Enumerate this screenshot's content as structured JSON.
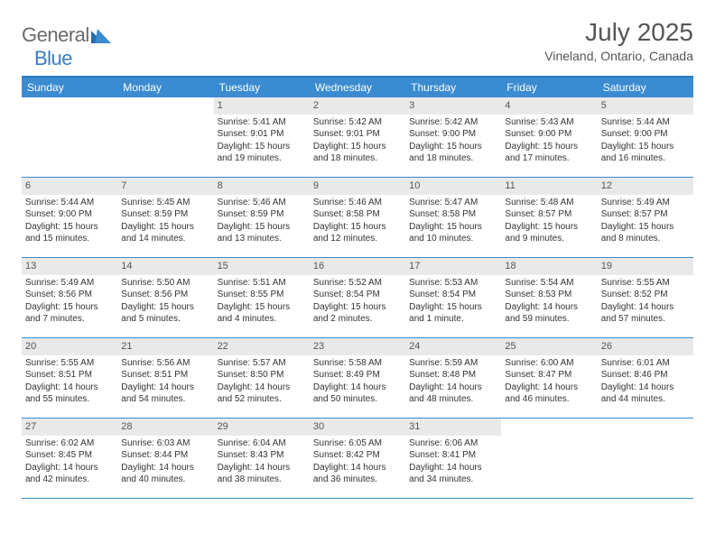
{
  "logo": {
    "text1": "General",
    "text2": "Blue"
  },
  "title": "July 2025",
  "location": "Vineland, Ontario, Canada",
  "colors": {
    "header_bg": "#3a8bd0",
    "header_border": "#2b7bbf",
    "day_band_bg": "#e9e9e9",
    "text": "#333333",
    "title_text": "#555555",
    "logo_gray": "#6a6a6a",
    "logo_blue": "#3a7cc2",
    "background": "#ffffff"
  },
  "fonts": {
    "title_size_pt": 21,
    "location_size_pt": 11,
    "header_size_pt": 9,
    "body_size_pt": 7.5
  },
  "weekdays": [
    "Sunday",
    "Monday",
    "Tuesday",
    "Wednesday",
    "Thursday",
    "Friday",
    "Saturday"
  ],
  "weeks": [
    [
      null,
      null,
      {
        "n": "1",
        "sr": "Sunrise: 5:41 AM",
        "ss": "Sunset: 9:01 PM",
        "d1": "Daylight: 15 hours",
        "d2": "and 19 minutes."
      },
      {
        "n": "2",
        "sr": "Sunrise: 5:42 AM",
        "ss": "Sunset: 9:01 PM",
        "d1": "Daylight: 15 hours",
        "d2": "and 18 minutes."
      },
      {
        "n": "3",
        "sr": "Sunrise: 5:42 AM",
        "ss": "Sunset: 9:00 PM",
        "d1": "Daylight: 15 hours",
        "d2": "and 18 minutes."
      },
      {
        "n": "4",
        "sr": "Sunrise: 5:43 AM",
        "ss": "Sunset: 9:00 PM",
        "d1": "Daylight: 15 hours",
        "d2": "and 17 minutes."
      },
      {
        "n": "5",
        "sr": "Sunrise: 5:44 AM",
        "ss": "Sunset: 9:00 PM",
        "d1": "Daylight: 15 hours",
        "d2": "and 16 minutes."
      }
    ],
    [
      {
        "n": "6",
        "sr": "Sunrise: 5:44 AM",
        "ss": "Sunset: 9:00 PM",
        "d1": "Daylight: 15 hours",
        "d2": "and 15 minutes."
      },
      {
        "n": "7",
        "sr": "Sunrise: 5:45 AM",
        "ss": "Sunset: 8:59 PM",
        "d1": "Daylight: 15 hours",
        "d2": "and 14 minutes."
      },
      {
        "n": "8",
        "sr": "Sunrise: 5:46 AM",
        "ss": "Sunset: 8:59 PM",
        "d1": "Daylight: 15 hours",
        "d2": "and 13 minutes."
      },
      {
        "n": "9",
        "sr": "Sunrise: 5:46 AM",
        "ss": "Sunset: 8:58 PM",
        "d1": "Daylight: 15 hours",
        "d2": "and 12 minutes."
      },
      {
        "n": "10",
        "sr": "Sunrise: 5:47 AM",
        "ss": "Sunset: 8:58 PM",
        "d1": "Daylight: 15 hours",
        "d2": "and 10 minutes."
      },
      {
        "n": "11",
        "sr": "Sunrise: 5:48 AM",
        "ss": "Sunset: 8:57 PM",
        "d1": "Daylight: 15 hours",
        "d2": "and 9 minutes."
      },
      {
        "n": "12",
        "sr": "Sunrise: 5:49 AM",
        "ss": "Sunset: 8:57 PM",
        "d1": "Daylight: 15 hours",
        "d2": "and 8 minutes."
      }
    ],
    [
      {
        "n": "13",
        "sr": "Sunrise: 5:49 AM",
        "ss": "Sunset: 8:56 PM",
        "d1": "Daylight: 15 hours",
        "d2": "and 7 minutes."
      },
      {
        "n": "14",
        "sr": "Sunrise: 5:50 AM",
        "ss": "Sunset: 8:56 PM",
        "d1": "Daylight: 15 hours",
        "d2": "and 5 minutes."
      },
      {
        "n": "15",
        "sr": "Sunrise: 5:51 AM",
        "ss": "Sunset: 8:55 PM",
        "d1": "Daylight: 15 hours",
        "d2": "and 4 minutes."
      },
      {
        "n": "16",
        "sr": "Sunrise: 5:52 AM",
        "ss": "Sunset: 8:54 PM",
        "d1": "Daylight: 15 hours",
        "d2": "and 2 minutes."
      },
      {
        "n": "17",
        "sr": "Sunrise: 5:53 AM",
        "ss": "Sunset: 8:54 PM",
        "d1": "Daylight: 15 hours",
        "d2": "and 1 minute."
      },
      {
        "n": "18",
        "sr": "Sunrise: 5:54 AM",
        "ss": "Sunset: 8:53 PM",
        "d1": "Daylight: 14 hours",
        "d2": "and 59 minutes."
      },
      {
        "n": "19",
        "sr": "Sunrise: 5:55 AM",
        "ss": "Sunset: 8:52 PM",
        "d1": "Daylight: 14 hours",
        "d2": "and 57 minutes."
      }
    ],
    [
      {
        "n": "20",
        "sr": "Sunrise: 5:55 AM",
        "ss": "Sunset: 8:51 PM",
        "d1": "Daylight: 14 hours",
        "d2": "and 55 minutes."
      },
      {
        "n": "21",
        "sr": "Sunrise: 5:56 AM",
        "ss": "Sunset: 8:51 PM",
        "d1": "Daylight: 14 hours",
        "d2": "and 54 minutes."
      },
      {
        "n": "22",
        "sr": "Sunrise: 5:57 AM",
        "ss": "Sunset: 8:50 PM",
        "d1": "Daylight: 14 hours",
        "d2": "and 52 minutes."
      },
      {
        "n": "23",
        "sr": "Sunrise: 5:58 AM",
        "ss": "Sunset: 8:49 PM",
        "d1": "Daylight: 14 hours",
        "d2": "and 50 minutes."
      },
      {
        "n": "24",
        "sr": "Sunrise: 5:59 AM",
        "ss": "Sunset: 8:48 PM",
        "d1": "Daylight: 14 hours",
        "d2": "and 48 minutes."
      },
      {
        "n": "25",
        "sr": "Sunrise: 6:00 AM",
        "ss": "Sunset: 8:47 PM",
        "d1": "Daylight: 14 hours",
        "d2": "and 46 minutes."
      },
      {
        "n": "26",
        "sr": "Sunrise: 6:01 AM",
        "ss": "Sunset: 8:46 PM",
        "d1": "Daylight: 14 hours",
        "d2": "and 44 minutes."
      }
    ],
    [
      {
        "n": "27",
        "sr": "Sunrise: 6:02 AM",
        "ss": "Sunset: 8:45 PM",
        "d1": "Daylight: 14 hours",
        "d2": "and 42 minutes."
      },
      {
        "n": "28",
        "sr": "Sunrise: 6:03 AM",
        "ss": "Sunset: 8:44 PM",
        "d1": "Daylight: 14 hours",
        "d2": "and 40 minutes."
      },
      {
        "n": "29",
        "sr": "Sunrise: 6:04 AM",
        "ss": "Sunset: 8:43 PM",
        "d1": "Daylight: 14 hours",
        "d2": "and 38 minutes."
      },
      {
        "n": "30",
        "sr": "Sunrise: 6:05 AM",
        "ss": "Sunset: 8:42 PM",
        "d1": "Daylight: 14 hours",
        "d2": "and 36 minutes."
      },
      {
        "n": "31",
        "sr": "Sunrise: 6:06 AM",
        "ss": "Sunset: 8:41 PM",
        "d1": "Daylight: 14 hours",
        "d2": "and 34 minutes."
      },
      null,
      null
    ]
  ]
}
